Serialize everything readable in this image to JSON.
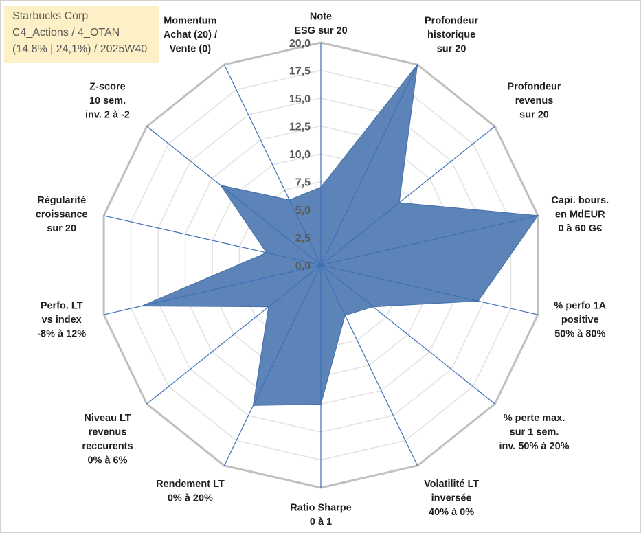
{
  "info": {
    "line1": "Starbucks Corp",
    "line2": "C4_Actions / 4_OTAN",
    "line3": "(14,8% | 24,1%) / 2025W40"
  },
  "colors": {
    "fill": "#4f7ab3",
    "fill_stroke": "#4a72a6",
    "axis": "#3d6fb6",
    "grid_outer": "#bfbfbf",
    "grid_inner": "#e3e3e3"
  },
  "chart_data": {
    "type": "radar",
    "title": "",
    "range": [
      0,
      20
    ],
    "ticks": [
      "0,0",
      "2,5",
      "5,0",
      "7,5",
      "10,0",
      "12,5",
      "15,0",
      "17,5",
      "20,0"
    ],
    "categories": [
      {
        "label": [
          "Note",
          "ESG sur 20"
        ],
        "value": 7
      },
      {
        "label": [
          "Profondeur",
          "historique",
          "sur 20"
        ],
        "value": 20
      },
      {
        "label": [
          "Profondeur",
          "revenus",
          "sur 20"
        ],
        "value": 9
      },
      {
        "label": [
          "Capi. bours.",
          "en MdEUR",
          "0 à 60 G€"
        ],
        "value": 20
      },
      {
        "label": [
          "% perfo 1A",
          "positive",
          "50% à 80%"
        ],
        "value": 14.5
      },
      {
        "label": [
          "% perte max.",
          "sur 1 sem.",
          "inv. 50% à 20%"
        ],
        "value": 6
      },
      {
        "label": [
          "Volatilité LT",
          "inversée",
          "40% à 0%"
        ],
        "value": 5
      },
      {
        "label": [
          "Ratio Sharpe",
          "0 à 1"
        ],
        "value": 12.5
      },
      {
        "label": [
          "Rendement LT",
          "0% à 20%"
        ],
        "value": 14
      },
      {
        "label": [
          "Niveau LT",
          "revenus",
          "reccurents",
          "0% à 6%"
        ],
        "value": 6
      },
      {
        "label": [
          "Perfo. LT",
          "vs index",
          "-8% à 12%"
        ],
        "value": 16.5
      },
      {
        "label": [
          "Régularité",
          "croissance",
          "sur 20"
        ],
        "value": 5
      },
      {
        "label": [
          "Z-score",
          "10 sem.",
          "inv. 2 à -2"
        ],
        "value": 11.5
      },
      {
        "label": [
          "Momentum",
          "Achat (20) /",
          "Vente (0)"
        ],
        "value": 6.5
      }
    ]
  }
}
